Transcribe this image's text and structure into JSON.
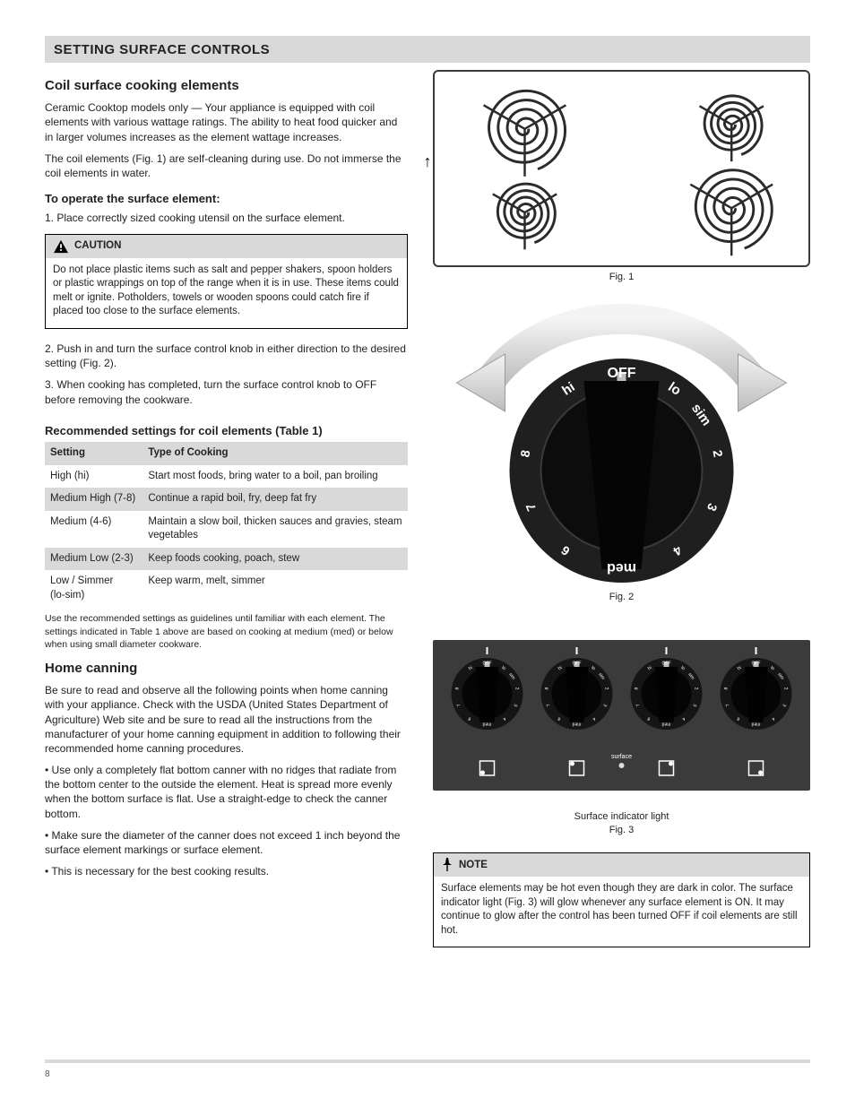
{
  "header": {
    "title": "SETTING SURFACE CONTROLS"
  },
  "coil": {
    "heading": "Coil surface cooking elements",
    "p1": "Ceramic Cooktop models only — Your appliance is equipped with coil elements with various wattage ratings. The ability to heat food quicker and in larger volumes increases as the element wattage increases.",
    "p2": "The coil elements (Fig. 1) are self‑cleaning during use. Do not immerse the coil elements in water.",
    "h_operate": "To operate the surface element:",
    "op1_a": "1. Place correctly sized cooking utensil on the surface element.",
    "op1_b": "2. Push in and turn the surface control knob in either direction to the desired setting (Fig. 2).",
    "op1_c": "3. When cooking has completed, turn the surface control knob to OFF before removing the cookware.",
    "warn_head": "CAUTION",
    "warn_body1": "Do not place plastic items such as salt and pepper shakers, spoon holders or plastic wrappings on top of the range when it is in use. These items could melt or ignite. Potholders, towels or wooden spoons could catch fire if placed too close to the surface elements."
  },
  "recommend": {
    "heading": "Recommended settings for coil elements (Table 1)",
    "table": {
      "col1": "Setting",
      "col2": "Type of Cooking",
      "rows": [
        [
          "High (hi)",
          "Start most foods, bring water to a boil, pan broiling"
        ],
        [
          "Medium High (7‑8)",
          "Continue a rapid boil, fry, deep fat fry"
        ],
        [
          "Medium (4‑6)",
          "Maintain a slow boil, thicken sauces and gravies, steam vegetables"
        ],
        [
          "Medium Low (2‑3)",
          "Keep foods cooking, poach, stew"
        ],
        [
          "Low / Simmer (lo‑sim)",
          "Keep warm, melt, simmer"
        ]
      ]
    },
    "note": "Use the recommended settings as guidelines until familiar with each element. The settings indicated in Table 1 above are based on cooking at medium (med) or below when using small diameter cookware."
  },
  "home": {
    "heading": "Home canning",
    "p1": "Be sure to read and observe all the following points when home canning with your appliance. Check with the USDA (United States Department of Agriculture) Web site and be sure to read all the instructions from the manufacturer of your home canning equipment in addition to following their recommended home canning procedures.",
    "b1": "• Use only a completely flat bottom canner with no ridges that radiate from the bottom center to the outside the element. Heat is spread more evenly when the bottom surface is flat. Use a straight‑edge to check the canner bottom.",
    "b2": "• Make sure the diameter of the canner does not exceed 1 inch beyond the surface element markings or surface element.",
    "b3": "• This is necessary for the best cooking results."
  },
  "right": {
    "caption1": "Fig. 1",
    "caption2": "Fig. 2",
    "caption3_a": "Surface indicator light",
    "caption3_b": "Fig. 3",
    "note_head": "NOTE",
    "note_body": "Surface elements may be hot even though they are dark in color. The surface indicator light (Fig. 3) will glow whenever any surface element is ON. It may continue to glow after the control has been turned OFF if coil elements are still hot.",
    "knob": {
      "labels": [
        "OFF",
        "lo",
        "sim",
        "2",
        "3",
        "4",
        "med",
        "6",
        "7",
        "8",
        "hi"
      ],
      "ring_color": "#1f1f1f",
      "dial_color": "#0c0c0c",
      "pointer_color": "#bfbfbf"
    },
    "panel": {
      "bg": "#3b3b3b",
      "surface_label": "surface"
    }
  },
  "footer": {
    "text": "8"
  }
}
